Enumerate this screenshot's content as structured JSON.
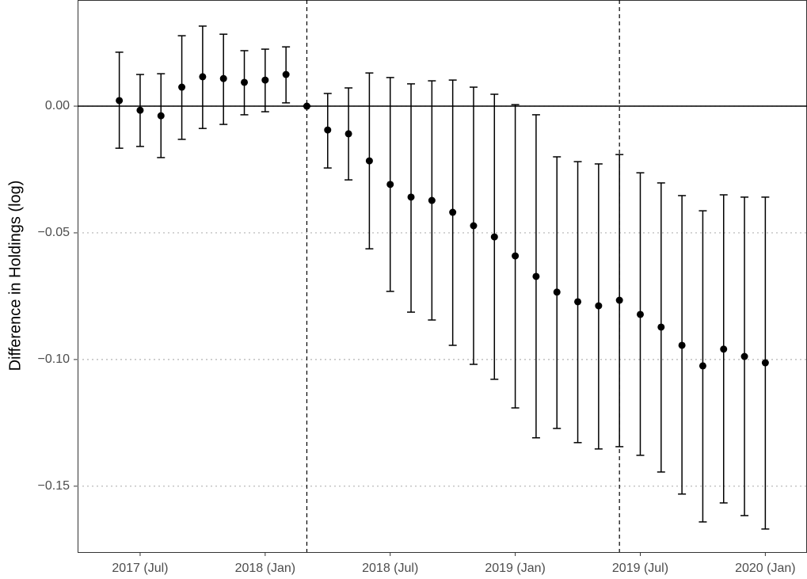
{
  "chart_data": {
    "type": "errorbar",
    "y_label": "Difference in Holdings (log)",
    "x": [
      "2017-06",
      "2017-07",
      "2017-08",
      "2017-09",
      "2017-10",
      "2017-11",
      "2017-12",
      "2018-01",
      "2018-02",
      "2018-03",
      "2018-04",
      "2018-05",
      "2018-06",
      "2018-07",
      "2018-08",
      "2018-09",
      "2018-10",
      "2018-11",
      "2018-12",
      "2019-01",
      "2019-02",
      "2019-03",
      "2019-04",
      "2019-05",
      "2019-06",
      "2019-07",
      "2019-08",
      "2019-09",
      "2019-10",
      "2019-11",
      "2019-12",
      "2020-01"
    ],
    "values": [
      0.0022,
      -0.0016,
      -0.0038,
      0.0075,
      0.0116,
      0.0109,
      0.0094,
      0.0103,
      0.0125,
      0,
      -0.0094,
      -0.0109,
      -0.0216,
      -0.0309,
      -0.0359,
      -0.0372,
      -0.0419,
      -0.0472,
      -0.0516,
      -0.0591,
      -0.0672,
      -0.0734,
      -0.0772,
      -0.0788,
      -0.0766,
      -0.0822,
      -0.0872,
      -0.0944,
      -0.1025,
      -0.0959,
      -0.0988,
      -0.1013
    ],
    "lower": [
      -0.0166,
      -0.0159,
      -0.0203,
      -0.0131,
      -0.0088,
      -0.0072,
      -0.0034,
      -0.0022,
      0.0013,
      0,
      -0.0244,
      -0.0291,
      -0.0563,
      -0.0731,
      -0.0813,
      -0.0844,
      -0.0944,
      -0.1019,
      -0.1078,
      -0.1191,
      -0.1309,
      -0.1272,
      -0.1328,
      -0.1353,
      -0.1344,
      -0.1378,
      -0.1444,
      -0.1531,
      -0.1641,
      -0.1566,
      -0.1616,
      -0.1669
    ],
    "upper": [
      0.0213,
      0.0125,
      0.0128,
      0.0278,
      0.0316,
      0.0284,
      0.0219,
      0.0225,
      0.0234,
      0,
      0.005,
      0.0072,
      0.0131,
      0.0113,
      0.0088,
      0.01,
      0.0103,
      0.0075,
      0.0047,
      0.0006,
      -0.0034,
      -0.02,
      -0.0219,
      -0.0228,
      -0.0191,
      -0.0263,
      -0.0303,
      -0.0353,
      -0.0413,
      -0.035,
      -0.0359,
      -0.0359
    ],
    "color": "#000000",
    "xlim": [
      "2017-04",
      "2020-03"
    ],
    "xticks": [
      {
        "value": "2017-07",
        "label": "2017 (Jul)"
      },
      {
        "value": "2018-01",
        "label": "2018 (Jan)"
      },
      {
        "value": "2018-07",
        "label": "2018 (Jul)"
      },
      {
        "value": "2019-01",
        "label": "2019 (Jan)"
      },
      {
        "value": "2019-07",
        "label": "2019 (Jul)"
      },
      {
        "value": "2020-01",
        "label": "2020 (Jan)"
      }
    ],
    "ylim": [
      -0.176,
      0.0419
    ],
    "yticks": [
      {
        "value": 0,
        "label": "0.00"
      },
      {
        "value": -0.05,
        "label": "−0.05"
      },
      {
        "value": -0.1,
        "label": "−0.10"
      },
      {
        "value": -0.15,
        "label": "−0.15"
      }
    ],
    "grid": true,
    "hline": 0,
    "vlines": [
      "2018-03",
      "2019-06"
    ]
  }
}
